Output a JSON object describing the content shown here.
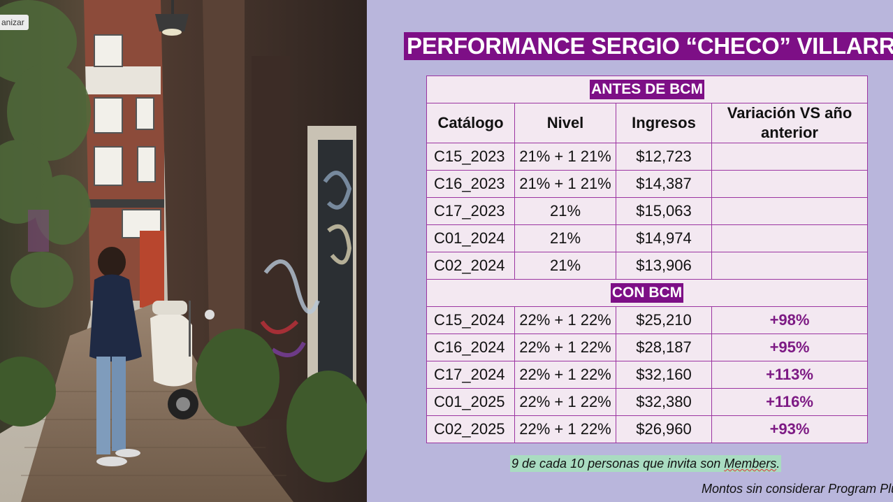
{
  "photo": {
    "chip_label": "anizar"
  },
  "slide": {
    "title": "PERFORMANCE SERGIO “CHECO” VILLARREAL",
    "table": {
      "section_before": "ANTES DE BCM",
      "section_with": "CON BCM",
      "headers": {
        "catalogo": "Catálogo",
        "nivel": "Nivel",
        "ingresos": "Ingresos",
        "variacion": "Variación VS año anterior"
      },
      "rows_before": [
        {
          "catalogo": "C15_2023",
          "nivel": "21% + 1 21%",
          "ingresos": "$12,723",
          "variacion": ""
        },
        {
          "catalogo": "C16_2023",
          "nivel": "21% + 1 21%",
          "ingresos": "$14,387",
          "variacion": ""
        },
        {
          "catalogo": "C17_2023",
          "nivel": "21%",
          "ingresos": "$15,063",
          "variacion": ""
        },
        {
          "catalogo": "C01_2024",
          "nivel": "21%",
          "ingresos": "$14,974",
          "variacion": ""
        },
        {
          "catalogo": "C02_2024",
          "nivel": "21%",
          "ingresos": "$13,906",
          "variacion": ""
        }
      ],
      "rows_with": [
        {
          "catalogo": "C15_2024",
          "nivel": "22% + 1 22%",
          "ingresos": "$25,210",
          "variacion": "+98%"
        },
        {
          "catalogo": "C16_2024",
          "nivel": "22% + 1 22%",
          "ingresos": "$28,187",
          "variacion": "+95%"
        },
        {
          "catalogo": "C17_2024",
          "nivel": "22% + 1 22%",
          "ingresos": "$32,160",
          "variacion": "+113%"
        },
        {
          "catalogo": "C01_2025",
          "nivel": "22% + 1 22%",
          "ingresos": "$32,380",
          "variacion": "+116%"
        },
        {
          "catalogo": "C02_2025",
          "nivel": "22% + 1 22%",
          "ingresos": "$26,960",
          "variacion": "+93%"
        }
      ]
    },
    "note": {
      "prefix": "9 de cada 10 personas que invita son ",
      "underlined": "Members",
      "suffix": "."
    },
    "footnote": "Montos sin considerar Program Plu"
  },
  "colors": {
    "accent_purple": "#7d0f86",
    "background_lavender": "#b9b6dc",
    "table_fill": "#f3e8f1",
    "note_highlight": "#a9dcc1"
  }
}
